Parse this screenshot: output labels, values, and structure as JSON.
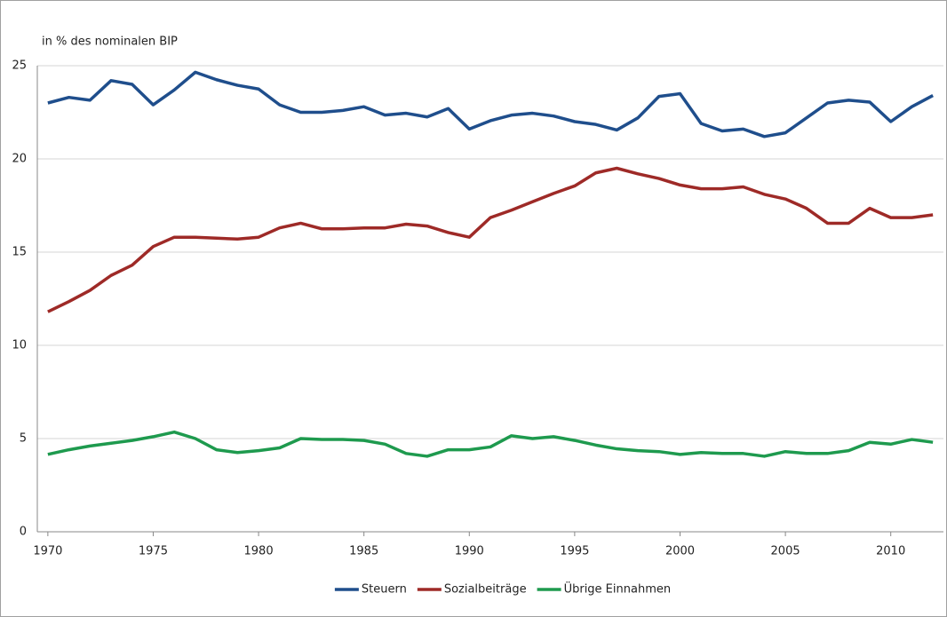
{
  "chart_data": {
    "type": "line",
    "y_label": "in % des nominalen BIP",
    "x": [
      1970,
      1971,
      1972,
      1973,
      1974,
      1975,
      1976,
      1977,
      1978,
      1979,
      1980,
      1981,
      1982,
      1983,
      1984,
      1985,
      1986,
      1987,
      1988,
      1989,
      1990,
      1991,
      1992,
      1993,
      1994,
      1995,
      1996,
      1997,
      1998,
      1999,
      2000,
      2001,
      2002,
      2003,
      2004,
      2005,
      2006,
      2007,
      2008,
      2009,
      2010,
      2011,
      2012
    ],
    "xlim": [
      1969.5,
      2012.5
    ],
    "xticks": [
      1970,
      1975,
      1980,
      1985,
      1990,
      1995,
      2000,
      2005,
      2010
    ],
    "ylim": [
      0,
      25
    ],
    "yticks": [
      0,
      5,
      10,
      15,
      20,
      25
    ],
    "grid": true,
    "legend": "bottom",
    "series": [
      {
        "name": "Steuern",
        "color": "#1f4e8c",
        "values": [
          23.0,
          23.3,
          23.15,
          24.2,
          24.0,
          22.9,
          23.7,
          24.65,
          24.25,
          23.95,
          23.75,
          22.9,
          22.5,
          22.5,
          22.6,
          22.8,
          22.35,
          22.45,
          22.25,
          22.7,
          21.6,
          22.05,
          22.35,
          22.45,
          22.3,
          22.0,
          21.85,
          21.55,
          22.2,
          23.35,
          23.5,
          21.9,
          21.5,
          21.6,
          21.2,
          21.4,
          22.2,
          23.0,
          23.15,
          23.05,
          22.0,
          22.8,
          23.4
        ]
      },
      {
        "name": "Sozialbeiträge",
        "color": "#9e2a27",
        "values": [
          11.8,
          12.35,
          12.95,
          13.75,
          14.3,
          15.3,
          15.8,
          15.8,
          15.75,
          15.7,
          15.8,
          16.3,
          16.55,
          16.25,
          16.25,
          16.3,
          16.3,
          16.5,
          16.4,
          16.05,
          15.8,
          16.85,
          17.25,
          17.7,
          18.15,
          18.55,
          19.25,
          19.5,
          19.2,
          18.95,
          18.6,
          18.4,
          18.4,
          18.5,
          18.1,
          17.85,
          17.35,
          16.55,
          16.55,
          17.35,
          16.85,
          16.85,
          17.0
        ]
      },
      {
        "name": "Übrige Einnahmen",
        "color": "#1e9a4e",
        "values": [
          4.15,
          4.4,
          4.6,
          4.75,
          4.9,
          5.1,
          5.35,
          5.0,
          4.4,
          4.25,
          4.35,
          4.5,
          5.0,
          4.95,
          4.95,
          4.9,
          4.7,
          4.2,
          4.05,
          4.4,
          4.4,
          4.55,
          5.15,
          5.0,
          5.1,
          4.9,
          4.65,
          4.45,
          4.35,
          4.3,
          4.15,
          4.25,
          4.2,
          4.2,
          4.05,
          4.3,
          4.2,
          4.2,
          4.35,
          4.8,
          4.7,
          4.95,
          4.8
        ]
      }
    ]
  }
}
